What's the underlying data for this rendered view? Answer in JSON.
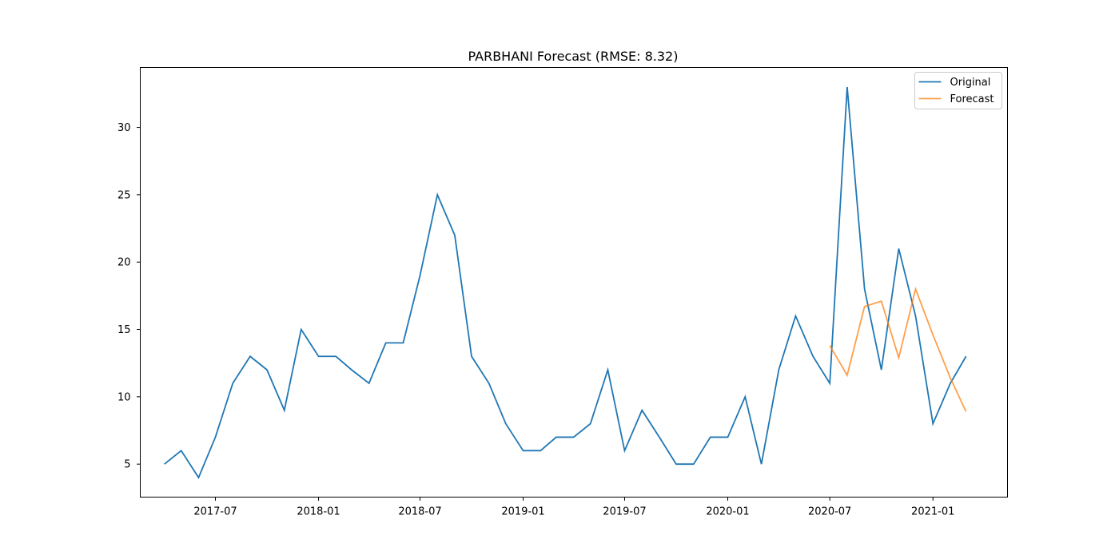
{
  "chart_data": {
    "type": "line",
    "title": "PARBHANI Forecast (RMSE: 8.32)",
    "xlabel": "",
    "ylabel": "",
    "grid": false,
    "legend_placement": "top-right",
    "xlim": [
      "2017-02-17",
      "2021-05-14"
    ],
    "ylim": [
      2.55,
      34.45
    ],
    "x_ticks": [
      "2017-07",
      "2018-01",
      "2018-07",
      "2019-01",
      "2019-07",
      "2020-01",
      "2020-07",
      "2021-01"
    ],
    "y_ticks": [
      5,
      10,
      15,
      20,
      25,
      30
    ],
    "series": [
      {
        "name": "Original",
        "color": "#1f77b4",
        "x": [
          "2017-04",
          "2017-05",
          "2017-06",
          "2017-07",
          "2017-08",
          "2017-09",
          "2017-10",
          "2017-11",
          "2017-12",
          "2018-01",
          "2018-02",
          "2018-03",
          "2018-04",
          "2018-05",
          "2018-06",
          "2018-07",
          "2018-08",
          "2018-09",
          "2018-10",
          "2018-11",
          "2018-12",
          "2019-01",
          "2019-02",
          "2019-03",
          "2019-04",
          "2019-05",
          "2019-06",
          "2019-07",
          "2019-08",
          "2019-09",
          "2019-10",
          "2019-11",
          "2019-12",
          "2020-01",
          "2020-02",
          "2020-03",
          "2020-04",
          "2020-05",
          "2020-06",
          "2020-07",
          "2020-08",
          "2020-09",
          "2020-10",
          "2020-11",
          "2020-12",
          "2021-01",
          "2021-02",
          "2021-03"
        ],
        "values": [
          5,
          6,
          4,
          7,
          11,
          13,
          12,
          9,
          15,
          13,
          13,
          12,
          11,
          14,
          14,
          19,
          25,
          22,
          13,
          11,
          8,
          6,
          6,
          7,
          7,
          8,
          12,
          6,
          9,
          7,
          5,
          5,
          7,
          7,
          10,
          5,
          12,
          16,
          13,
          11,
          33,
          18,
          12,
          21,
          16,
          8,
          11,
          13
        ]
      },
      {
        "name": "Forecast",
        "color": "#ff7f0e",
        "x": [
          "2020-07",
          "2020-08",
          "2020-09",
          "2020-10",
          "2020-11",
          "2020-12",
          "2021-01",
          "2021-02",
          "2021-03"
        ],
        "values": [
          13.8,
          11.6,
          16.7,
          17.1,
          12.9,
          18.0,
          14.6,
          11.4,
          8.9
        ]
      }
    ]
  }
}
